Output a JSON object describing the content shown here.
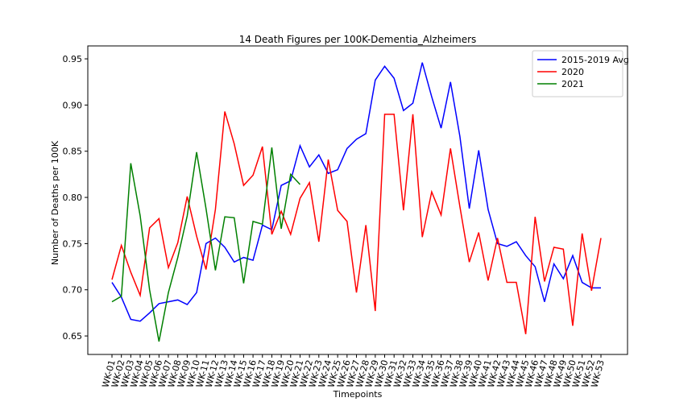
{
  "chart_data": {
    "type": "line",
    "title": "14 Death Figures per 100K-Dementia_Alzheimers",
    "x_label": "Timepoints",
    "y_label": "Number of Deaths per 100K",
    "categories": [
      "WK-01",
      "WK-02",
      "WK-03",
      "WK-04",
      "WK-05",
      "WK-06",
      "WK-07",
      "WK-08",
      "WK-09",
      "WK-10",
      "WK-11",
      "WK-12",
      "WK-13",
      "WK-14",
      "WK-15",
      "WK-16",
      "WK-17",
      "WK-18",
      "WK-19",
      "WK-20",
      "WK-21",
      "WK-22",
      "WK-23",
      "WK-24",
      "WK-25",
      "WK-26",
      "WK-27",
      "WK-28",
      "WK-29",
      "WK-30",
      "WK-31",
      "WK-32",
      "WK-33",
      "WK-34",
      "WK-35",
      "WK-36",
      "WK-37",
      "WK-38",
      "WK-39",
      "WK-40",
      "WK-41",
      "WK-42",
      "WK-43",
      "WK-44",
      "WK-45",
      "WK-46",
      "WK-47",
      "WK-48",
      "WK-49",
      "WK-50",
      "WK-51",
      "WK-52",
      "WK-53"
    ],
    "series": [
      {
        "name": "2015-2019 Avg",
        "color": "#0000ff",
        "values": [
          0.708,
          0.692,
          0.668,
          0.666,
          0.675,
          0.685,
          0.687,
          0.689,
          0.684,
          0.697,
          0.75,
          0.756,
          0.746,
          0.73,
          0.735,
          0.732,
          0.77,
          0.765,
          0.813,
          0.818,
          0.856,
          0.833,
          0.846,
          0.826,
          0.83,
          0.853,
          0.863,
          0.869,
          0.927,
          0.942,
          0.929,
          0.894,
          0.902,
          0.946,
          0.909,
          0.875,
          0.925,
          0.866,
          0.788,
          0.851,
          0.787,
          0.75,
          0.747,
          0.752,
          0.737,
          0.725,
          0.687,
          0.728,
          0.712,
          0.737,
          0.708,
          0.702,
          0.702
        ]
      },
      {
        "name": "2020",
        "color": "#ff0000",
        "values": [
          0.711,
          0.748,
          0.719,
          0.694,
          0.767,
          0.777,
          0.724,
          0.751,
          0.801,
          0.758,
          0.722,
          0.787,
          0.893,
          0.858,
          0.813,
          0.824,
          0.855,
          0.76,
          0.785,
          0.76,
          0.799,
          0.816,
          0.752,
          0.841,
          0.786,
          0.774,
          0.697,
          0.77,
          0.677,
          0.89,
          0.89,
          0.786,
          0.89,
          0.757,
          0.806,
          0.781,
          0.853,
          0.79,
          0.73,
          0.762,
          0.71,
          0.756,
          0.708,
          0.708,
          0.652,
          0.779,
          0.709,
          0.746,
          0.744,
          0.661,
          0.761,
          0.699,
          0.756
        ]
      },
      {
        "name": "2021",
        "color": "#008000",
        "values": [
          0.687,
          0.693,
          0.837,
          0.78,
          0.7,
          0.644,
          0.697,
          0.735,
          0.78,
          0.849,
          0.788,
          0.721,
          0.779,
          0.778,
          0.707,
          0.774,
          0.771,
          0.854,
          0.766,
          0.825,
          0.814,
          null,
          null,
          null,
          null,
          null,
          null,
          null,
          null,
          null,
          null,
          null,
          null,
          null,
          null,
          null,
          null,
          null,
          null,
          null,
          null,
          null,
          null,
          null,
          null,
          null,
          null,
          null,
          null,
          null,
          null,
          null,
          null
        ]
      }
    ],
    "ylim": [
      0.63,
      0.964
    ],
    "yticks": [
      0.65,
      {
        "value": 0.7,
        "label": "0.70"
      },
      0.75,
      {
        "value": 0.8,
        "label": "0.80"
      },
      0.85,
      {
        "value": 0.9,
        "label": "0.90"
      },
      0.95
    ],
    "legend": "upper right"
  }
}
